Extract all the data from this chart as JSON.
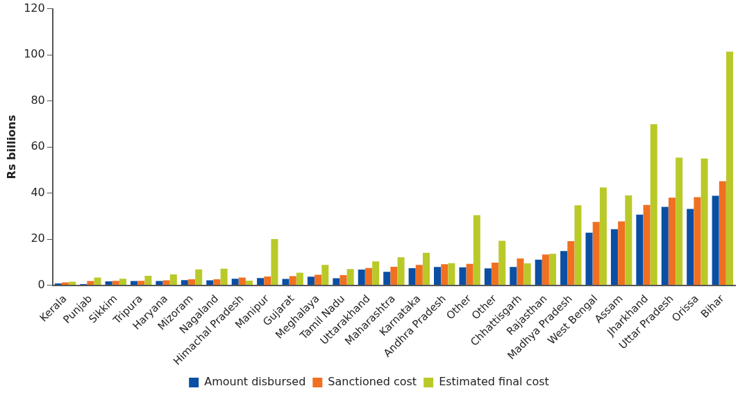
{
  "chart_data": {
    "type": "bar",
    "ylabel": "Rs billions",
    "categories": [
      "Kerala",
      "Punjab",
      "Sikkim",
      "Tripura",
      "Haryana",
      "Mizoram",
      "Nagaland",
      "Himachal Pradesh",
      "Manipur",
      "Gujarat",
      "Meghalaya",
      "Tamil Nadu",
      "Uttarakhand",
      "Maharashtra",
      "Karnataka",
      "Andhra Pradesh",
      "Other",
      "Other",
      "Chhattisgarh",
      "Rajasthan",
      "Madhya Pradesh",
      "West Bengal",
      "Assam",
      "Jharkhand",
      "Uttar Pradesh",
      "Orissa",
      "Bihar"
    ],
    "series": [
      {
        "name": "Amount disbursed",
        "color": "#0a4fa3",
        "values": [
          0.8,
          0.5,
          1.7,
          1.8,
          1.8,
          2.2,
          2.1,
          2.8,
          3.1,
          2.7,
          3.7,
          3.0,
          6.8,
          5.8,
          7.4,
          7.9,
          7.8,
          7.3,
          7.9,
          11.1,
          14.8,
          22.8,
          24.3,
          30.6,
          34.0,
          33.1,
          38.8
        ]
      },
      {
        "name": "Sanctioned cost",
        "color": "#f07022",
        "values": [
          1.2,
          1.8,
          1.9,
          1.9,
          2.1,
          2.6,
          2.6,
          3.3,
          3.8,
          3.9,
          4.5,
          4.4,
          7.5,
          8.0,
          8.8,
          9.1,
          9.3,
          9.8,
          11.6,
          13.3,
          19.1,
          27.5,
          27.7,
          34.8,
          38.0,
          38.2,
          45.1
        ]
      },
      {
        "name": "Estimated final cost",
        "color": "#b9c928",
        "values": [
          1.5,
          3.3,
          2.8,
          4.1,
          4.7,
          6.9,
          7.2,
          2.0,
          20,
          5.4,
          8.8,
          7.0,
          10.3,
          12.1,
          14.1,
          9.6,
          30.4,
          19.3,
          9.5,
          13.6,
          34.7,
          42.4,
          39.0,
          69.9,
          55.4,
          55.0,
          101.4
        ]
      }
    ],
    "ylim": [
      0,
      120
    ],
    "yticks": [
      0,
      20,
      40,
      60,
      80,
      100,
      120
    ],
    "grid": false,
    "legend": "bottom"
  }
}
